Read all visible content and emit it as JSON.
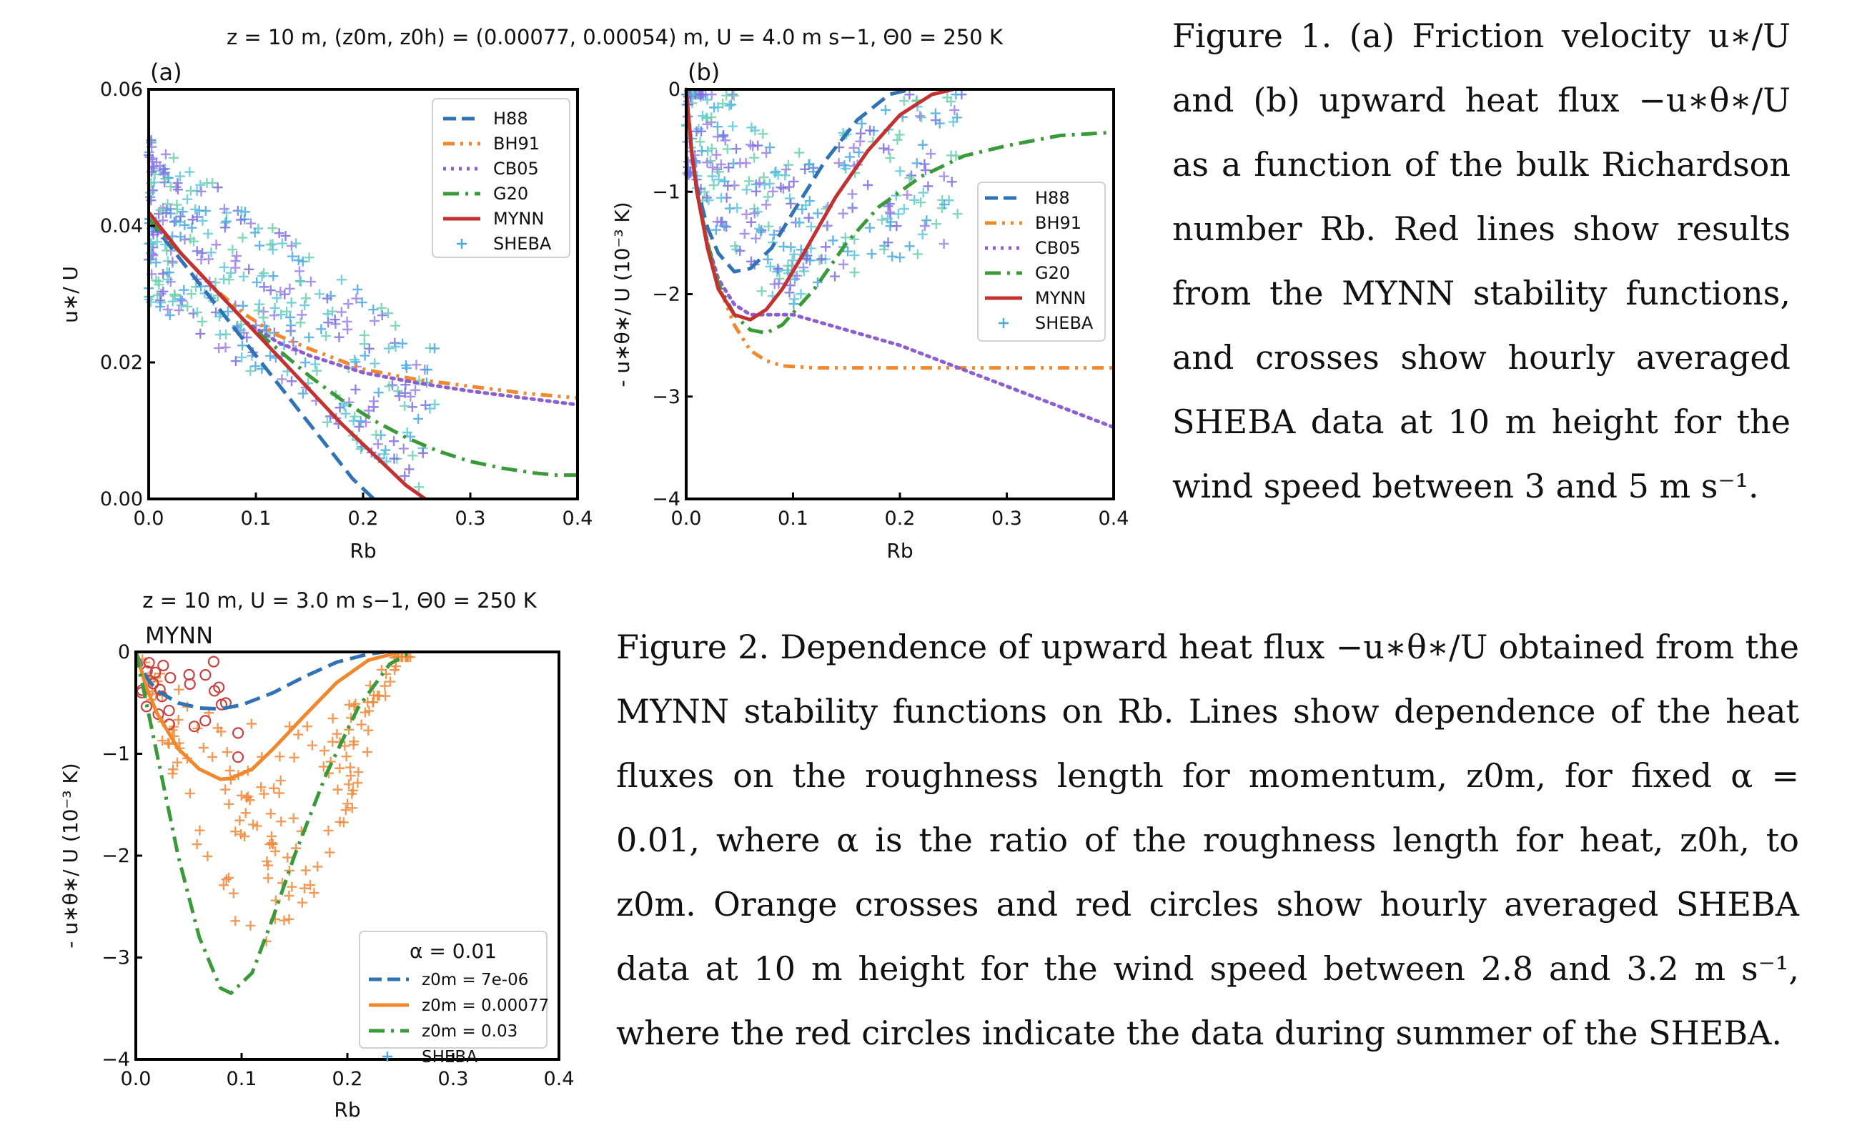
{
  "figure1": {
    "title": "z = 10 m, (z0m, z0h) = (0.00077, 0.00054) m, U = 4.0 m s−1, Θ0 = 250 K",
    "caption": "Figure 1. (a) Friction velocity u∗/U and (b) upward heat flux −u∗θ∗/U as a function of the bulk Richardson number Rb. Red lines show results from the MYNN stability functions, and crosses show hourly averaged SHEBA data at 10 m height for the wind speed between 3 and 5 m s⁻¹."
  },
  "figure2": {
    "title": "z = 10 m, U = 3.0 m s−1, Θ0 = 250 K",
    "caption": "Figure 2. Dependence of upward heat flux −u∗θ∗/U obtained from the MYNN stability functions on Rb. Lines show dependence of the heat fluxes on the roughness length for momentum, z0m, for fixed α = 0.01, where α is the ratio of the roughness length for heat, z0h, to z0m. Orange crosses and red circles show hourly averaged SHEBA data at 10 m height for the wind speed between 2.8 and 3.2 m s⁻¹, where the red circles indicate the data during summer of the SHEBA."
  },
  "colors": {
    "H88": "#2f73b5",
    "BH91": "#f0882e",
    "CB05": "#8b5fd0",
    "G20": "#3a9a3a",
    "MYNN": "#c43131",
    "SHEBA": [
      "#4aa8e0",
      "#7a6ee0",
      "#70d0b0",
      "#9a80e8",
      "#5ec8d8"
    ],
    "fig2_orange": "#f0883a",
    "fig2_red": "#c84040"
  },
  "chart_data": [
    {
      "id": "a",
      "type": "line",
      "panel_label": "(a)",
      "xlabel": "Rb",
      "ylabel": "u∗/ U",
      "xlim": [
        0,
        0.4
      ],
      "ylim": [
        0,
        0.06
      ],
      "xticks": [
        "0.0",
        "0.1",
        "0.2",
        "0.3",
        "0.4"
      ],
      "yticks": [
        "0.00",
        "0.02",
        "0.04",
        "0.06"
      ],
      "legend_position": "upper right",
      "series": [
        {
          "name": "H88",
          "style": "dashed",
          "x": [
            0,
            0.025,
            0.05,
            0.08,
            0.11,
            0.14,
            0.17,
            0.19,
            0.21
          ],
          "y": [
            0.041,
            0.036,
            0.031,
            0.025,
            0.019,
            0.013,
            0.007,
            0.003,
            0.0
          ]
        },
        {
          "name": "BH91",
          "style": "dashdotdot",
          "x": [
            0,
            0.03,
            0.06,
            0.09,
            0.12,
            0.15,
            0.2,
            0.25,
            0.3,
            0.35,
            0.4
          ],
          "y": [
            0.041,
            0.036,
            0.031,
            0.027,
            0.024,
            0.022,
            0.019,
            0.0175,
            0.0165,
            0.0155,
            0.0148
          ]
        },
        {
          "name": "CB05",
          "style": "dotted",
          "x": [
            0,
            0.03,
            0.06,
            0.09,
            0.12,
            0.15,
            0.2,
            0.25,
            0.3,
            0.35,
            0.4
          ],
          "y": [
            0.041,
            0.036,
            0.031,
            0.026,
            0.023,
            0.021,
            0.0185,
            0.017,
            0.0158,
            0.0148,
            0.0138
          ]
        },
        {
          "name": "G20",
          "style": "dashdot",
          "x": [
            0,
            0.03,
            0.06,
            0.09,
            0.12,
            0.15,
            0.18,
            0.21,
            0.24,
            0.27,
            0.3,
            0.33,
            0.36,
            0.38,
            0.4
          ],
          "y": [
            0.041,
            0.036,
            0.031,
            0.026,
            0.022,
            0.018,
            0.0145,
            0.0115,
            0.009,
            0.007,
            0.0055,
            0.0045,
            0.0038,
            0.0035,
            0.0035
          ]
        },
        {
          "name": "MYNN",
          "style": "solid",
          "x": [
            0,
            0.03,
            0.06,
            0.09,
            0.12,
            0.15,
            0.18,
            0.21,
            0.24,
            0.258
          ],
          "y": [
            0.042,
            0.036,
            0.031,
            0.026,
            0.021,
            0.016,
            0.011,
            0.0065,
            0.002,
            0.0
          ]
        },
        {
          "name": "SHEBA",
          "style": "markers"
        }
      ]
    },
    {
      "id": "b",
      "type": "line",
      "panel_label": "(b)",
      "xlabel": "Rb",
      "ylabel": "- u∗θ∗/ U  (10⁻³ K)",
      "xlim": [
        0,
        0.4
      ],
      "ylim": [
        -4,
        0
      ],
      "xticks": [
        "0.0",
        "0.1",
        "0.2",
        "0.3",
        "0.4"
      ],
      "yticks": [
        "−4",
        "−3",
        "−2",
        "−1",
        "0"
      ],
      "legend_position": "center right",
      "series": [
        {
          "name": "H88",
          "style": "dashed",
          "x": [
            0,
            0.005,
            0.01,
            0.02,
            0.03,
            0.045,
            0.06,
            0.08,
            0.1,
            0.13,
            0.16,
            0.19,
            0.21
          ],
          "y": [
            0,
            -0.6,
            -0.95,
            -1.35,
            -1.6,
            -1.78,
            -1.75,
            -1.55,
            -1.2,
            -0.7,
            -0.3,
            -0.05,
            0
          ]
        },
        {
          "name": "BH91",
          "style": "dashdotdot",
          "x": [
            0,
            0.005,
            0.01,
            0.02,
            0.03,
            0.045,
            0.06,
            0.075,
            0.09,
            0.12,
            0.2,
            0.3,
            0.4
          ],
          "y": [
            0,
            -0.6,
            -1.0,
            -1.5,
            -1.9,
            -2.3,
            -2.55,
            -2.65,
            -2.7,
            -2.72,
            -2.72,
            -2.72,
            -2.72
          ]
        },
        {
          "name": "CB05",
          "style": "dotted",
          "x": [
            0,
            0.005,
            0.01,
            0.02,
            0.03,
            0.045,
            0.06,
            0.075,
            0.1,
            0.15,
            0.2,
            0.25,
            0.3,
            0.35,
            0.4
          ],
          "y": [
            0,
            -0.6,
            -1.0,
            -1.5,
            -1.85,
            -2.1,
            -2.2,
            -2.2,
            -2.2,
            -2.35,
            -2.5,
            -2.7,
            -2.9,
            -3.1,
            -3.3
          ]
        },
        {
          "name": "G20",
          "style": "dashdot",
          "x": [
            0,
            0.005,
            0.01,
            0.02,
            0.03,
            0.045,
            0.06,
            0.075,
            0.09,
            0.12,
            0.15,
            0.18,
            0.22,
            0.26,
            0.3,
            0.35,
            0.4
          ],
          "y": [
            0,
            -0.6,
            -1.0,
            -1.5,
            -1.9,
            -2.2,
            -2.35,
            -2.38,
            -2.3,
            -1.95,
            -1.5,
            -1.15,
            -0.85,
            -0.65,
            -0.55,
            -0.45,
            -0.42
          ]
        },
        {
          "name": "MYNN",
          "style": "solid",
          "x": [
            0,
            0.005,
            0.01,
            0.02,
            0.03,
            0.045,
            0.06,
            0.075,
            0.09,
            0.11,
            0.14,
            0.17,
            0.2,
            0.23,
            0.25
          ],
          "y": [
            0,
            -0.6,
            -1.0,
            -1.55,
            -1.95,
            -2.2,
            -2.25,
            -2.15,
            -1.95,
            -1.6,
            -1.05,
            -0.6,
            -0.25,
            -0.05,
            0
          ]
        },
        {
          "name": "SHEBA",
          "style": "markers"
        }
      ]
    },
    {
      "id": "fig2",
      "type": "line",
      "panel_label": "MYNN",
      "xlabel": "Rb",
      "ylabel": "- u∗θ∗/ U  (10⁻³ K)",
      "xlim": [
        0,
        0.4
      ],
      "ylim": [
        -4,
        0
      ],
      "xticks": [
        "0.0",
        "0.1",
        "0.2",
        "0.3",
        "0.4"
      ],
      "yticks": [
        "−4",
        "−3",
        "−2",
        "−1",
        "0"
      ],
      "legend_position": "lower right",
      "legend_title": "α = 0.01",
      "series": [
        {
          "name": "z0m = 7e-06",
          "style": "dashed",
          "x": [
            0,
            0.01,
            0.02,
            0.04,
            0.06,
            0.08,
            0.1,
            0.13,
            0.16,
            0.19,
            0.22,
            0.235
          ],
          "y": [
            0,
            -0.25,
            -0.38,
            -0.5,
            -0.55,
            -0.56,
            -0.52,
            -0.4,
            -0.24,
            -0.1,
            -0.02,
            0
          ]
        },
        {
          "name": "z0m = 0.00077",
          "style": "solid",
          "x": [
            0,
            0.01,
            0.02,
            0.04,
            0.06,
            0.08,
            0.09,
            0.11,
            0.13,
            0.16,
            0.19,
            0.22,
            0.25
          ],
          "y": [
            0,
            -0.35,
            -0.6,
            -0.95,
            -1.15,
            -1.25,
            -1.24,
            -1.15,
            -0.95,
            -0.62,
            -0.3,
            -0.08,
            0
          ]
        },
        {
          "name": "z0m = 0.03",
          "style": "dashdot",
          "x": [
            0,
            0.01,
            0.02,
            0.04,
            0.06,
            0.08,
            0.09,
            0.11,
            0.13,
            0.15,
            0.18,
            0.21,
            0.24,
            0.26
          ],
          "y": [
            0,
            -0.5,
            -1.0,
            -2.0,
            -2.8,
            -3.3,
            -3.35,
            -3.15,
            -2.6,
            -2.0,
            -1.2,
            -0.55,
            -0.12,
            0
          ]
        },
        {
          "name": "SHEBA",
          "style": "markers"
        }
      ]
    }
  ]
}
